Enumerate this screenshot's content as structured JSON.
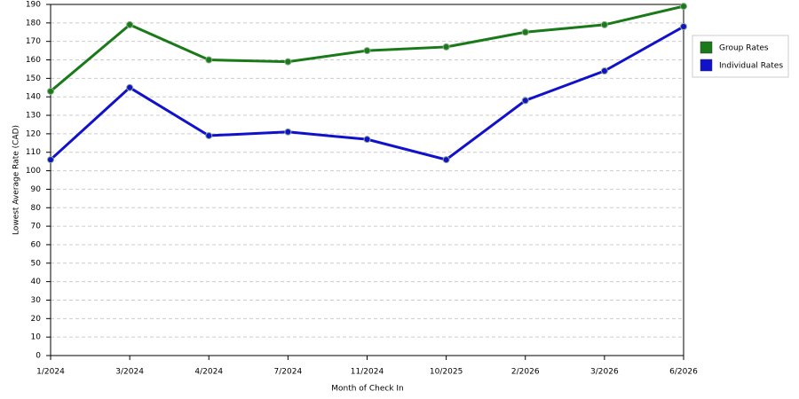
{
  "chart_data": {
    "type": "line",
    "x_label": "Month of Check In",
    "y_label": "Lowest Average Rate (CAD)",
    "categories": [
      "1/2024",
      "3/2024",
      "4/2024",
      "7/2024",
      "11/2024",
      "10/2025",
      "2/2026",
      "3/2026",
      "6/2026"
    ],
    "series": [
      {
        "name": "Group Rates",
        "color": "#1a7a1a",
        "values": [
          143,
          179,
          160,
          159,
          165,
          167,
          175,
          179,
          189
        ]
      },
      {
        "name": "Individual Rates",
        "color": "#1111cc",
        "values": [
          106,
          145,
          119,
          121,
          117,
          106,
          138,
          154,
          178
        ]
      }
    ],
    "ylim": [
      0,
      190
    ],
    "yticks": [
      0,
      10,
      20,
      30,
      40,
      50,
      60,
      70,
      80,
      90,
      100,
      110,
      120,
      130,
      140,
      150,
      160,
      170,
      180,
      190
    ],
    "grid": true
  }
}
